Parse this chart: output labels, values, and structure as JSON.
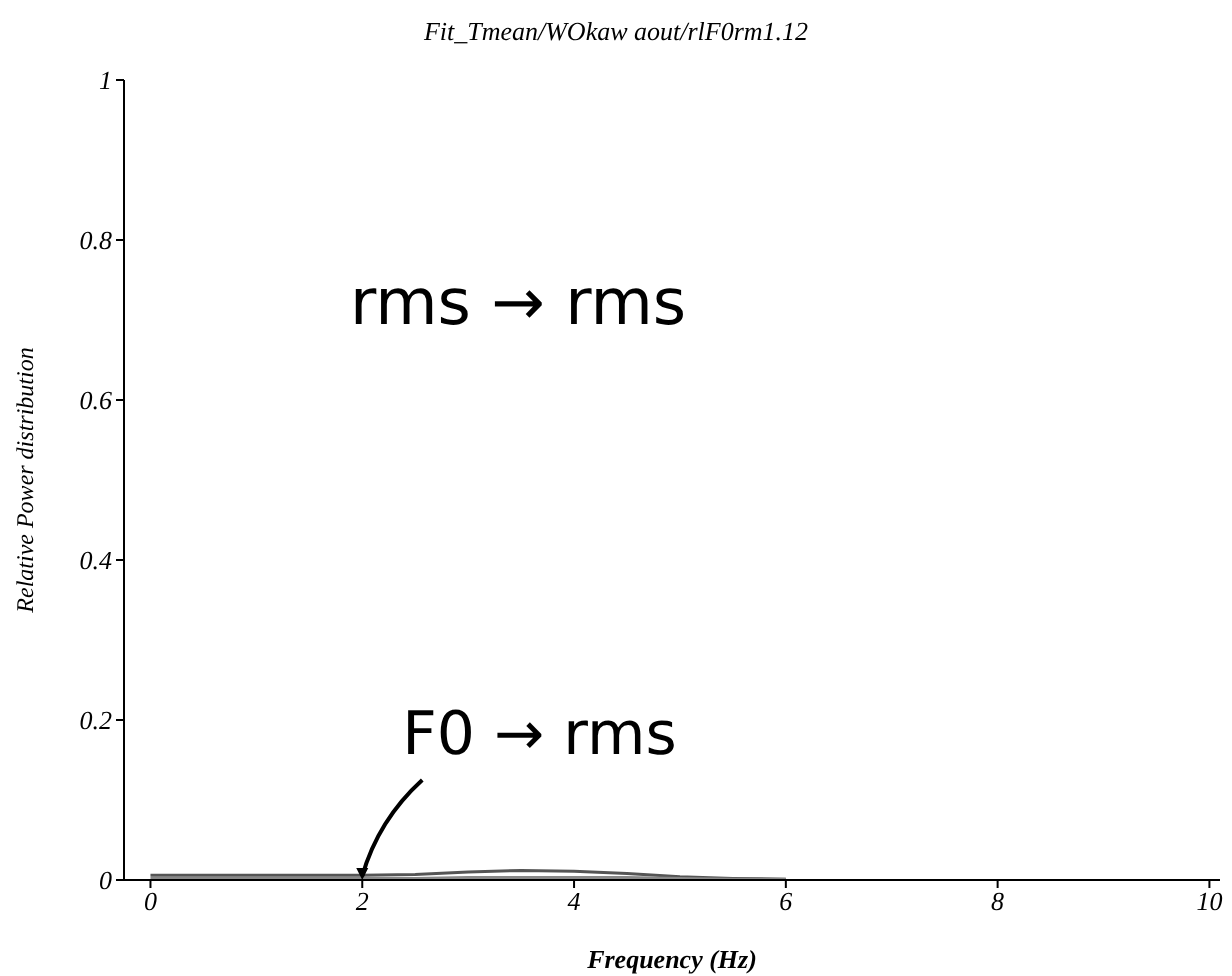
{
  "chart_data": {
    "type": "line",
    "title": "Fit_Tmean/WOkaw aout/rlF0rm1.12",
    "xlabel": "Frequency (Hz)",
    "ylabel": "Relative Power distribution",
    "x": [
      0,
      0.5,
      1,
      1.5,
      2,
      2.5,
      3,
      3.5,
      4,
      4.5,
      5,
      5.5,
      6
    ],
    "series": [
      {
        "color": "#555555",
        "values": [
          0.006,
          0.006,
          0.006,
          0.006,
          0.006,
          0.007,
          0.01,
          0.012,
          0.011,
          0.008,
          0.004,
          0.002,
          0.001
        ]
      },
      {
        "color": "#888888",
        "values": [
          0.002,
          0.002,
          0.002,
          0.002,
          0.002,
          0.002,
          0.003,
          0.003,
          0.003,
          0.003,
          0.002,
          0.001,
          0.001
        ]
      }
    ],
    "xlim": [
      -0.25,
      10.1
    ],
    "ylim": [
      0,
      1
    ],
    "xticks": [
      0,
      2,
      4,
      6,
      8,
      10
    ],
    "yticks": [
      0,
      0.2,
      0.4,
      0.6,
      0.8,
      1
    ],
    "grid": false,
    "legend": false,
    "marker": "none",
    "line_style": "solid",
    "annotations": [
      "rms → rms",
      {
        "text": "F0 → rms",
        "x": 2,
        "y": 0
      }
    ]
  }
}
